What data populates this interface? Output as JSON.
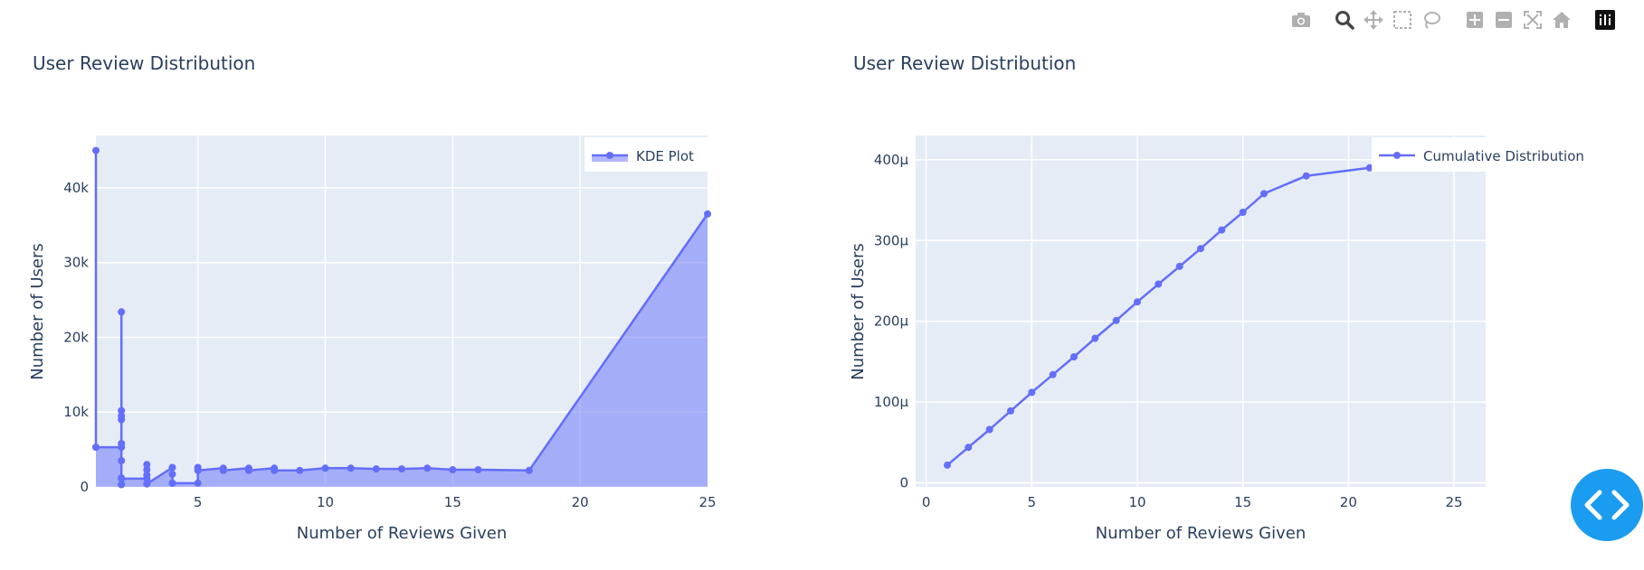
{
  "chart_data": [
    {
      "type": "area",
      "title": "User Review Distribution",
      "xlabel": "Number of Reviews Given",
      "ylabel": "Number of Users",
      "xlim": [
        1,
        25
      ],
      "ylim": [
        0,
        47000
      ],
      "xticks": [
        "5",
        "10",
        "15",
        "20",
        "25"
      ],
      "yticks": [
        "0",
        "10k",
        "20k",
        "30k",
        "40k"
      ],
      "grid": true,
      "legend": "top-right",
      "series": [
        {
          "name": "KDE Plot",
          "color": "#636efa",
          "fill": "tozeroy",
          "x": [
            1,
            1,
            1,
            2,
            2,
            2,
            2,
            2,
            2,
            2,
            2,
            2,
            2,
            3,
            3,
            3,
            3,
            3,
            4,
            4,
            4,
            4,
            5,
            5,
            5,
            6,
            6,
            7,
            7,
            8,
            8,
            9,
            10,
            11,
            12,
            13,
            14,
            15,
            16,
            18,
            25
          ],
          "y": [
            45000,
            5300,
            5300,
            5300,
            10200,
            9500,
            23400,
            9000,
            5800,
            3500,
            1200,
            300,
            1100,
            1100,
            3000,
            2300,
            1600,
            400,
            2600,
            1700,
            500,
            500,
            500,
            2600,
            2200,
            2500,
            2200,
            2500,
            2200,
            2500,
            2200,
            2200,
            2500,
            2500,
            2400,
            2400,
            2500,
            2300,
            2300,
            2200,
            36500
          ]
        }
      ]
    },
    {
      "type": "line",
      "title": "User Review Distribution",
      "xlabel": "Number of Reviews Given",
      "ylabel": "Number of Users",
      "xlim": [
        -0.5,
        26.5
      ],
      "ylim": [
        -5,
        430
      ],
      "xticks": [
        "0",
        "5",
        "10",
        "15",
        "20",
        "25"
      ],
      "yticks": [
        "0",
        "100μ",
        "200μ",
        "300μ",
        "400μ"
      ],
      "grid": true,
      "legend": "top-right",
      "series": [
        {
          "name": "Cumulative Distribution",
          "color": "#636efa",
          "x": [
            1,
            2,
            3,
            4,
            5,
            6,
            7,
            8,
            9,
            10,
            11,
            12,
            13,
            14,
            15,
            16,
            18,
            21
          ],
          "y": [
            22,
            44,
            66,
            89,
            112,
            134,
            156,
            179,
            201,
            224,
            246,
            268,
            290,
            313,
            335,
            358,
            380,
            390
          ]
        }
      ]
    }
  ],
  "modebar": {
    "icons": [
      "camera-icon",
      "zoom-icon",
      "pan-icon",
      "box-select-icon",
      "lasso-icon",
      "zoom-in-icon",
      "zoom-out-icon",
      "autoscale-icon",
      "reset-axes-icon",
      "plotly-logo-icon"
    ]
  },
  "fab": {
    "icon": "code-brackets-icon",
    "color": "#1a9cf0"
  }
}
